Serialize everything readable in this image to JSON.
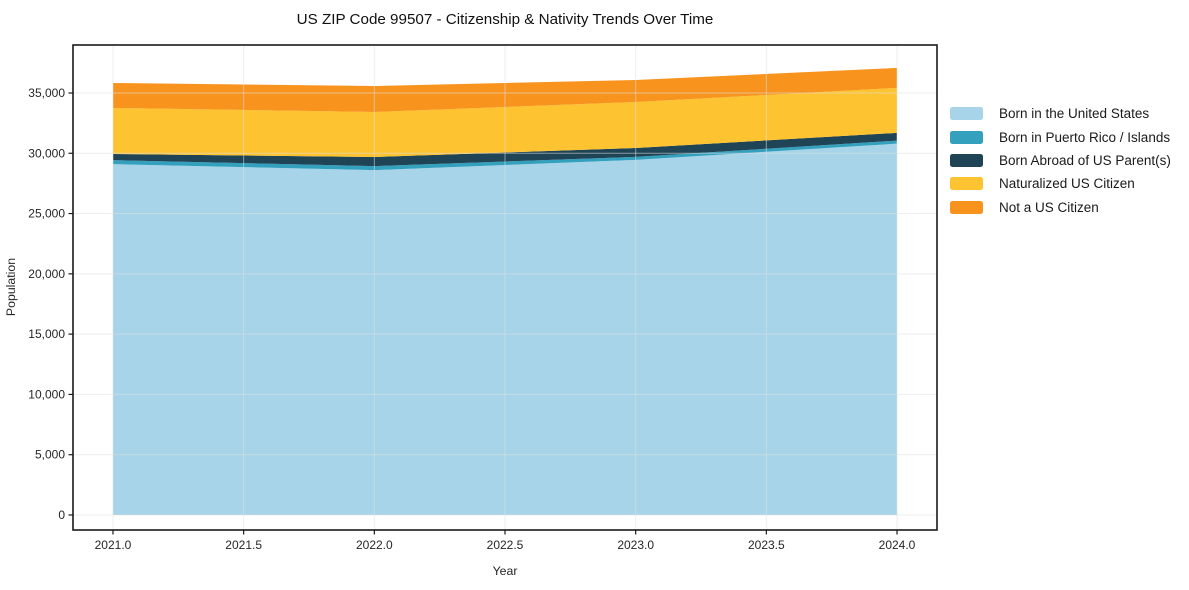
{
  "chart_data": {
    "type": "area",
    "stacked": true,
    "title": "US ZIP Code 99507 - Citizenship & Nativity Trends Over Time",
    "xlabel": "Year",
    "ylabel": "Population",
    "x": [
      2021,
      2022,
      2023,
      2024
    ],
    "series": [
      {
        "name": "Born in the United States",
        "color": "#A7D4E8",
        "values": [
          29100,
          28600,
          29450,
          30800
        ]
      },
      {
        "name": "Born in Puerto Rico / Islands",
        "color": "#33A0BE",
        "values": [
          330,
          330,
          250,
          250
        ]
      },
      {
        "name": "Born Abroad of US Parent(s)",
        "color": "#1F4456",
        "values": [
          510,
          760,
          740,
          640
        ]
      },
      {
        "name": "Naturalized US Citizen",
        "color": "#FDC330",
        "values": [
          3820,
          3730,
          3810,
          3730
        ]
      },
      {
        "name": "Not a US Citizen",
        "color": "#F8941E",
        "values": [
          2070,
          2160,
          1830,
          1660
        ]
      }
    ],
    "totals": [
      35830,
      35580,
      36080,
      37080
    ],
    "xticks": [
      2021.0,
      2021.5,
      2022.0,
      2022.5,
      2023.0,
      2023.5,
      2024.0
    ],
    "yticks": [
      0,
      5000,
      10000,
      15000,
      20000,
      25000,
      30000,
      35000
    ],
    "xlim": [
      2020.847,
      2024.153
    ],
    "ylim": [
      -1245,
      38980
    ],
    "grid": true,
    "legend_position": "right",
    "colors": {
      "spine": "#1a1a1a",
      "grid": "#e0e0e0",
      "background": "#ffffff"
    }
  }
}
